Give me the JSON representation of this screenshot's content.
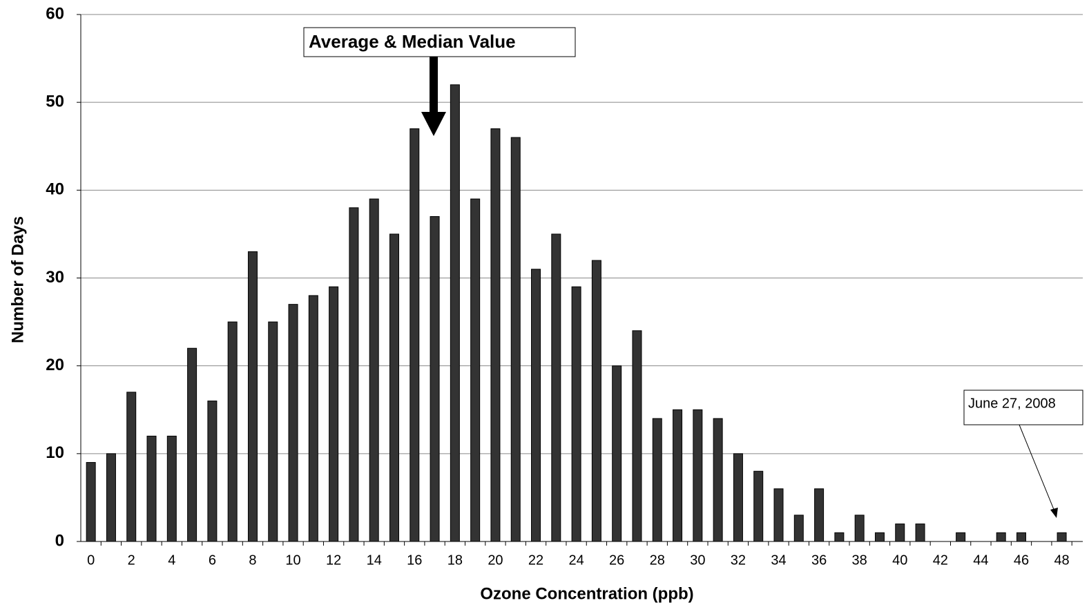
{
  "chart_data": {
    "type": "bar",
    "x_label": "Ozone Concentration (ppb)",
    "y_label": "Number of Days",
    "categories": [
      "0",
      null,
      "2",
      null,
      "4",
      null,
      "6",
      null,
      "8",
      null,
      "10",
      null,
      "12",
      null,
      "14",
      null,
      "16",
      null,
      "18",
      null,
      "20",
      null,
      "22",
      null,
      "24",
      null,
      "26",
      null,
      "28",
      null,
      "30",
      null,
      "32",
      null,
      "34",
      null,
      "36",
      null,
      "38",
      null,
      "40",
      null,
      "42",
      null,
      "44",
      null,
      "46",
      null,
      "48"
    ],
    "values": [
      9,
      10,
      17,
      12,
      12,
      22,
      16,
      25,
      33,
      25,
      27,
      28,
      29,
      38,
      39,
      35,
      47,
      37,
      52,
      39,
      47,
      46,
      31,
      35,
      29,
      32,
      20,
      24,
      14,
      15,
      15,
      14,
      10,
      8,
      6,
      3,
      6,
      1,
      3,
      1,
      2,
      2,
      0,
      1,
      0,
      1,
      1,
      0,
      1
    ],
    "color": "#333333",
    "ylim": [
      0,
      60
    ],
    "yticks": [
      0,
      10,
      20,
      30,
      40,
      50,
      60
    ],
    "grid": true,
    "annotations": [
      "Average & Median Value",
      "June 27, 2008"
    ]
  }
}
